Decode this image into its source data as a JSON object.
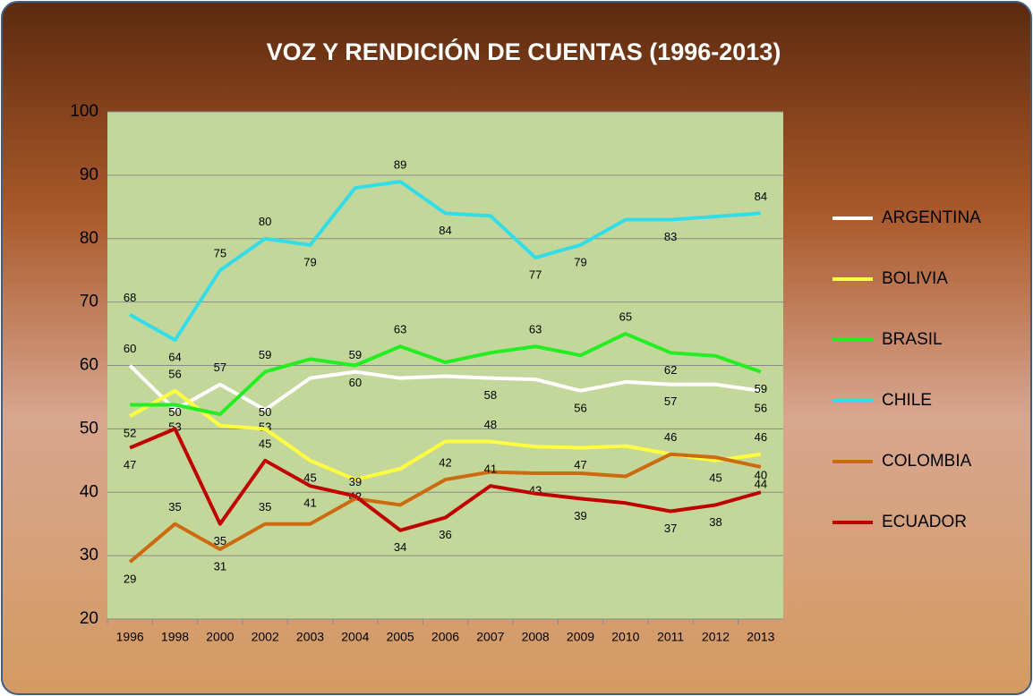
{
  "chart_data": {
    "type": "line",
    "title": "VOZ Y RENDICIÓN  DE CUENTAS (1996-2013)",
    "categories": [
      "1996",
      "1998",
      "2000",
      "2002",
      "2003",
      "2004",
      "2005",
      "2006",
      "2007",
      "2008",
      "2009",
      "2010",
      "2011",
      "2012",
      "2013"
    ],
    "ylim": [
      20,
      100
    ],
    "yticks": [
      20,
      30,
      40,
      50,
      60,
      70,
      80,
      90,
      100
    ],
    "grid": true,
    "legend": "right",
    "series": [
      {
        "name": "ARGENTINA",
        "color": "#ffffff",
        "values": [
          60,
          53,
          57,
          53,
          58,
          59,
          58,
          58.3,
          58,
          57.8,
          56,
          57.4,
          57,
          57,
          56
        ],
        "value_labels": [
          "60",
          "53",
          "57",
          "53",
          null,
          "59",
          null,
          null,
          "58",
          null,
          "56",
          null,
          "57",
          null,
          "56"
        ]
      },
      {
        "name": "BOLIVIA",
        "color": "#ffff40",
        "values": [
          52,
          56,
          50.5,
          50,
          45,
          42,
          43.7,
          48,
          48,
          47.2,
          47,
          47.3,
          46,
          45,
          46
        ],
        "value_labels": [
          "52",
          "56",
          null,
          "50",
          "45",
          "42",
          null,
          null,
          "48",
          null,
          "47",
          null,
          null,
          "45",
          "46"
        ]
      },
      {
        "name": "BRASIL",
        "color": "#22ee22",
        "values": [
          53.8,
          53.8,
          52.3,
          59,
          61,
          60,
          63,
          60.5,
          62,
          63,
          61.6,
          65,
          62,
          61.5,
          59
        ],
        "value_labels": [
          null,
          null,
          null,
          "59",
          null,
          "60",
          "63",
          null,
          null,
          "63",
          null,
          "65",
          "62",
          null,
          "59"
        ]
      },
      {
        "name": "CHILE",
        "color": "#33dde8",
        "values": [
          68,
          64,
          75,
          80,
          79,
          88,
          89,
          84,
          83.6,
          77,
          79,
          83,
          83,
          83.5,
          84
        ],
        "value_labels": [
          "68",
          "64",
          "75",
          "80",
          "79",
          null,
          "89",
          "84",
          null,
          "77",
          "79",
          null,
          "83",
          null,
          "84"
        ]
      },
      {
        "name": "COLOMBIA",
        "color": "#cc6a10",
        "values": [
          29,
          35,
          31,
          35,
          35,
          39,
          38,
          42,
          43.2,
          43,
          43,
          42.5,
          46,
          45.5,
          44
        ],
        "value_labels": [
          "29",
          "35",
          "31",
          "35",
          null,
          "39",
          null,
          "42",
          null,
          "43",
          null,
          null,
          "46",
          null,
          "44"
        ]
      },
      {
        "name": "ECUADOR",
        "color": "#c00000",
        "values": [
          47,
          50,
          35,
          45,
          41,
          39.4,
          34,
          36,
          41,
          39.8,
          39,
          38.3,
          37,
          38,
          40
        ],
        "value_labels": [
          "47",
          "50",
          "35",
          "45",
          "41",
          null,
          "34",
          "36",
          "41",
          null,
          "39",
          null,
          "37",
          "38",
          "40"
        ]
      }
    ]
  }
}
